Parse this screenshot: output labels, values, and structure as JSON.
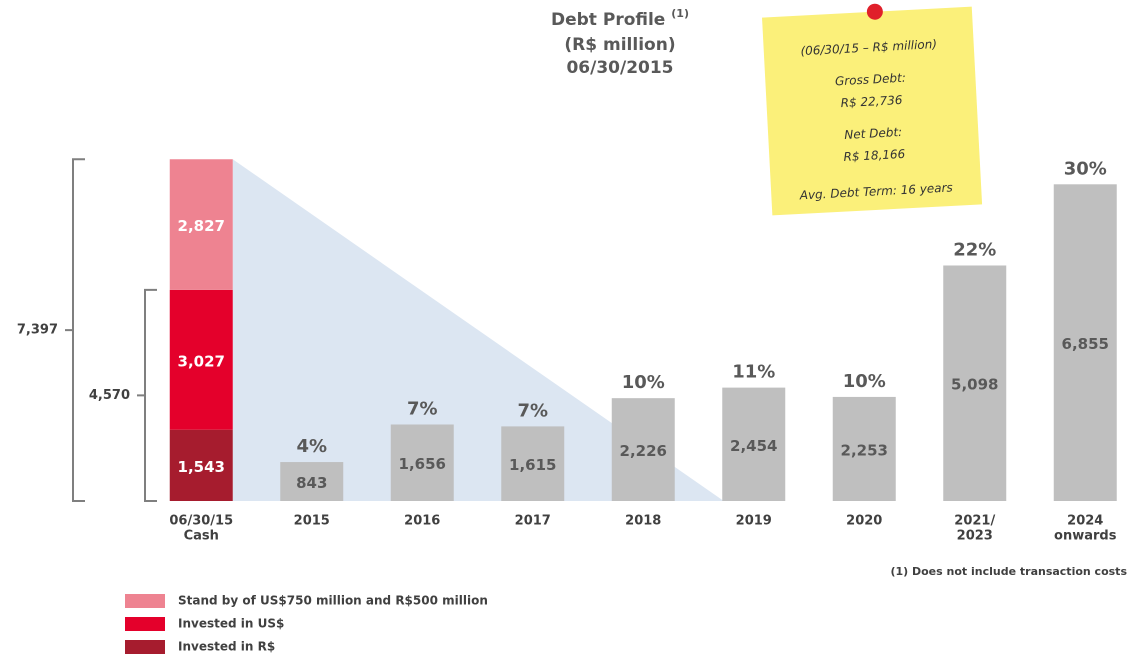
{
  "chart_data": {
    "type": "bar",
    "title": "Debt Profile",
    "title_note": "(1)",
    "subtitle": [
      "(R$ million)",
      "06/30/2015"
    ],
    "categories": [
      [
        "06/30/15",
        "Cash"
      ],
      [
        "2015"
      ],
      [
        "2016"
      ],
      [
        "2017"
      ],
      [
        "2018"
      ],
      [
        "2019"
      ],
      [
        "2020"
      ],
      [
        "2021/",
        "2023"
      ],
      [
        "2024",
        "onwards"
      ]
    ],
    "ylim": [
      0,
      10000
    ],
    "series": [
      {
        "name": "Invested in R$",
        "color": "#a61c2e",
        "values": [
          1543,
          null,
          null,
          null,
          null,
          null,
          null,
          null,
          null
        ],
        "value_labels": [
          "1,543",
          null,
          null,
          null,
          null,
          null,
          null,
          null,
          null
        ]
      },
      {
        "name": "Invested in US$",
        "color": "#e4002b",
        "values": [
          3027,
          null,
          null,
          null,
          null,
          null,
          null,
          null,
          null
        ],
        "value_labels": [
          "3,027",
          null,
          null,
          null,
          null,
          null,
          null,
          null,
          null
        ]
      },
      {
        "name": "Stand by of US$750 million and R$500 million",
        "color": "#ee8391",
        "values": [
          2827,
          null,
          null,
          null,
          null,
          null,
          null,
          null,
          null
        ],
        "value_labels": [
          "2,827",
          null,
          null,
          null,
          null,
          null,
          null,
          null,
          null
        ]
      },
      {
        "color": "#bfbfbf",
        "values": [
          null,
          843,
          1656,
          1615,
          2226,
          2454,
          2253,
          5098,
          6855
        ],
        "value_labels": [
          null,
          "843",
          "1,656",
          "1,615",
          "2,226",
          "2,454",
          "2,253",
          "5,098",
          "6,855"
        ],
        "shares": [
          null,
          4,
          7,
          7,
          10,
          11,
          10,
          22,
          30
        ],
        "share_labels": [
          null,
          "4%",
          "7%",
          "7%",
          "10%",
          "11%",
          "10%",
          "22%",
          "30%"
        ]
      }
    ],
    "brackets": [
      {
        "value": 7397,
        "label": "7,397"
      },
      {
        "value": 4570,
        "label": "4,570"
      }
    ],
    "note": [
      "(06/30/15 – R$ million)",
      "Gross Debt:",
      "R$ 22,736",
      "Net Debt:",
      "R$ 18,166",
      "Avg. Debt Term: 16 years"
    ],
    "footnote": "(1) Does not include transaction costs"
  }
}
